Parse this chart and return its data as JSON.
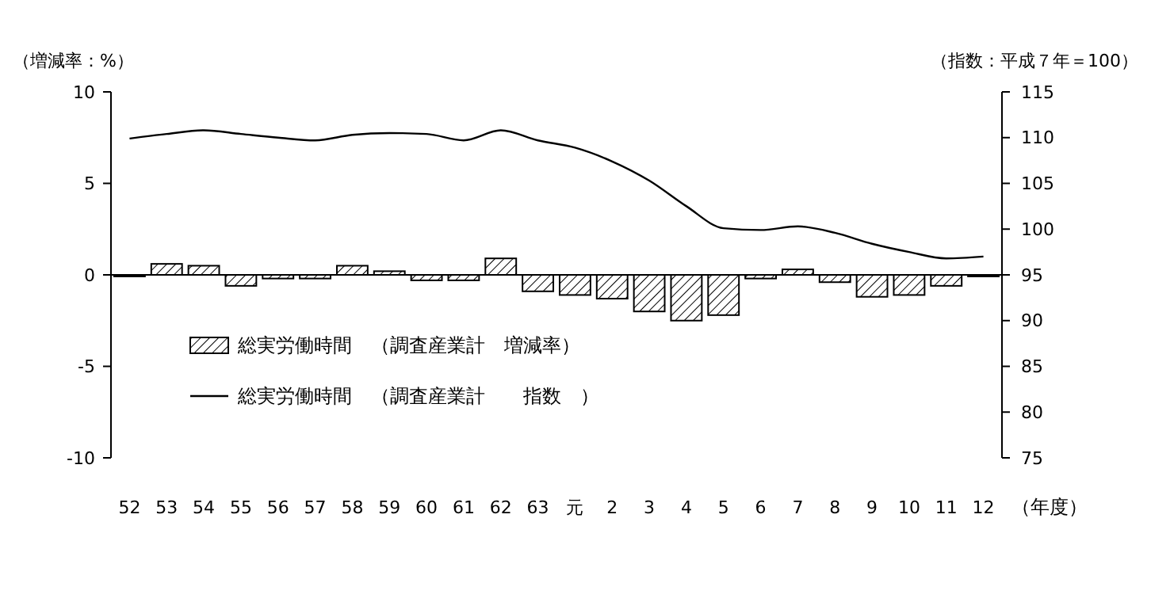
{
  "chart_data": {
    "type": "bar",
    "xlabel": "（年度）",
    "ylabel": "（増減率：%）",
    "y2label": "（指数：平成７年＝100）",
    "categories": [
      "52",
      "53",
      "54",
      "55",
      "56",
      "57",
      "58",
      "59",
      "60",
      "61",
      "62",
      "63",
      "元",
      "2",
      "3",
      "4",
      "5",
      "6",
      "7",
      "8",
      "9",
      "10",
      "11",
      "12"
    ],
    "series": [
      {
        "name": "総実労働時間　（調査産業計　増減率）",
        "color": "#000000",
        "values": [
          0,
          0.6,
          0.5,
          -0.6,
          -0.2,
          -0.2,
          0.5,
          0.2,
          -0.3,
          -0.3,
          0.9,
          -0.9,
          -1.1,
          -1.3,
          -2.0,
          -2.5,
          -2.2,
          -0.2,
          0.3,
          -0.4,
          -1.2,
          -1.1,
          -0.6,
          0
        ]
      },
      {
        "type": "line",
        "axis": "y2",
        "name": "総実労働時間　（調査産業計　　指数　）",
        "color": "#000000",
        "values": [
          109.9,
          110.4,
          110.8,
          110.4,
          110.0,
          109.7,
          110.3,
          110.5,
          110.4,
          109.7,
          110.8,
          109.7,
          108.9,
          107.4,
          105.3,
          102.5,
          100.1,
          99.9,
          100.3,
          99.6,
          98.4,
          97.5,
          96.8,
          97.0
        ]
      }
    ],
    "ylim": [
      -10,
      10
    ],
    "yticks": [
      -10,
      -5,
      0,
      5,
      10
    ],
    "y2lim": [
      75,
      115
    ],
    "y2ticks": [
      75,
      80,
      85,
      90,
      95,
      100,
      105,
      110,
      115
    ],
    "legend": "bottom left"
  }
}
